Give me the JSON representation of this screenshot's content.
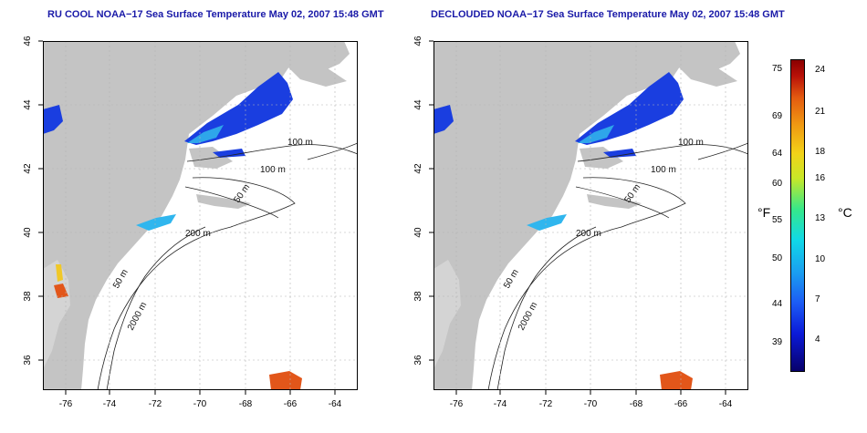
{
  "titles": {
    "left": "RU COOL NOAA−17 Sea Surface Temperature May 02, 2007 15:48 GMT",
    "right": "DECLOUDED NOAA−17 Sea Surface Temperature May 02, 2007 15:48 GMT"
  },
  "axes": {
    "lon_ticks": [
      "-76",
      "-74",
      "-72",
      "-70",
      "-68",
      "-66",
      "-64"
    ],
    "lat_ticks": [
      "46",
      "44",
      "42",
      "40",
      "38",
      "36"
    ]
  },
  "contours": {
    "c100": "100 m",
    "c100b": "100 m",
    "c50": "50 m",
    "c50b": "50 m",
    "c200": "200 m",
    "c2000": "2000 m"
  },
  "colorbar": {
    "f_label": "°F",
    "c_label": "°C",
    "f_ticks": [
      "75",
      "69",
      "64",
      "60",
      "55",
      "50",
      "44",
      "39"
    ],
    "c_ticks": [
      "24",
      "21",
      "18",
      "16",
      "13",
      "10",
      "7",
      "4"
    ]
  },
  "colors": {
    "land": "#c4c4c4",
    "ocean": "#ffffff",
    "title": "#1a1aa8",
    "cold": "#1a3ee0",
    "cool": "#30b6ee",
    "warm": "#e2561a"
  }
}
